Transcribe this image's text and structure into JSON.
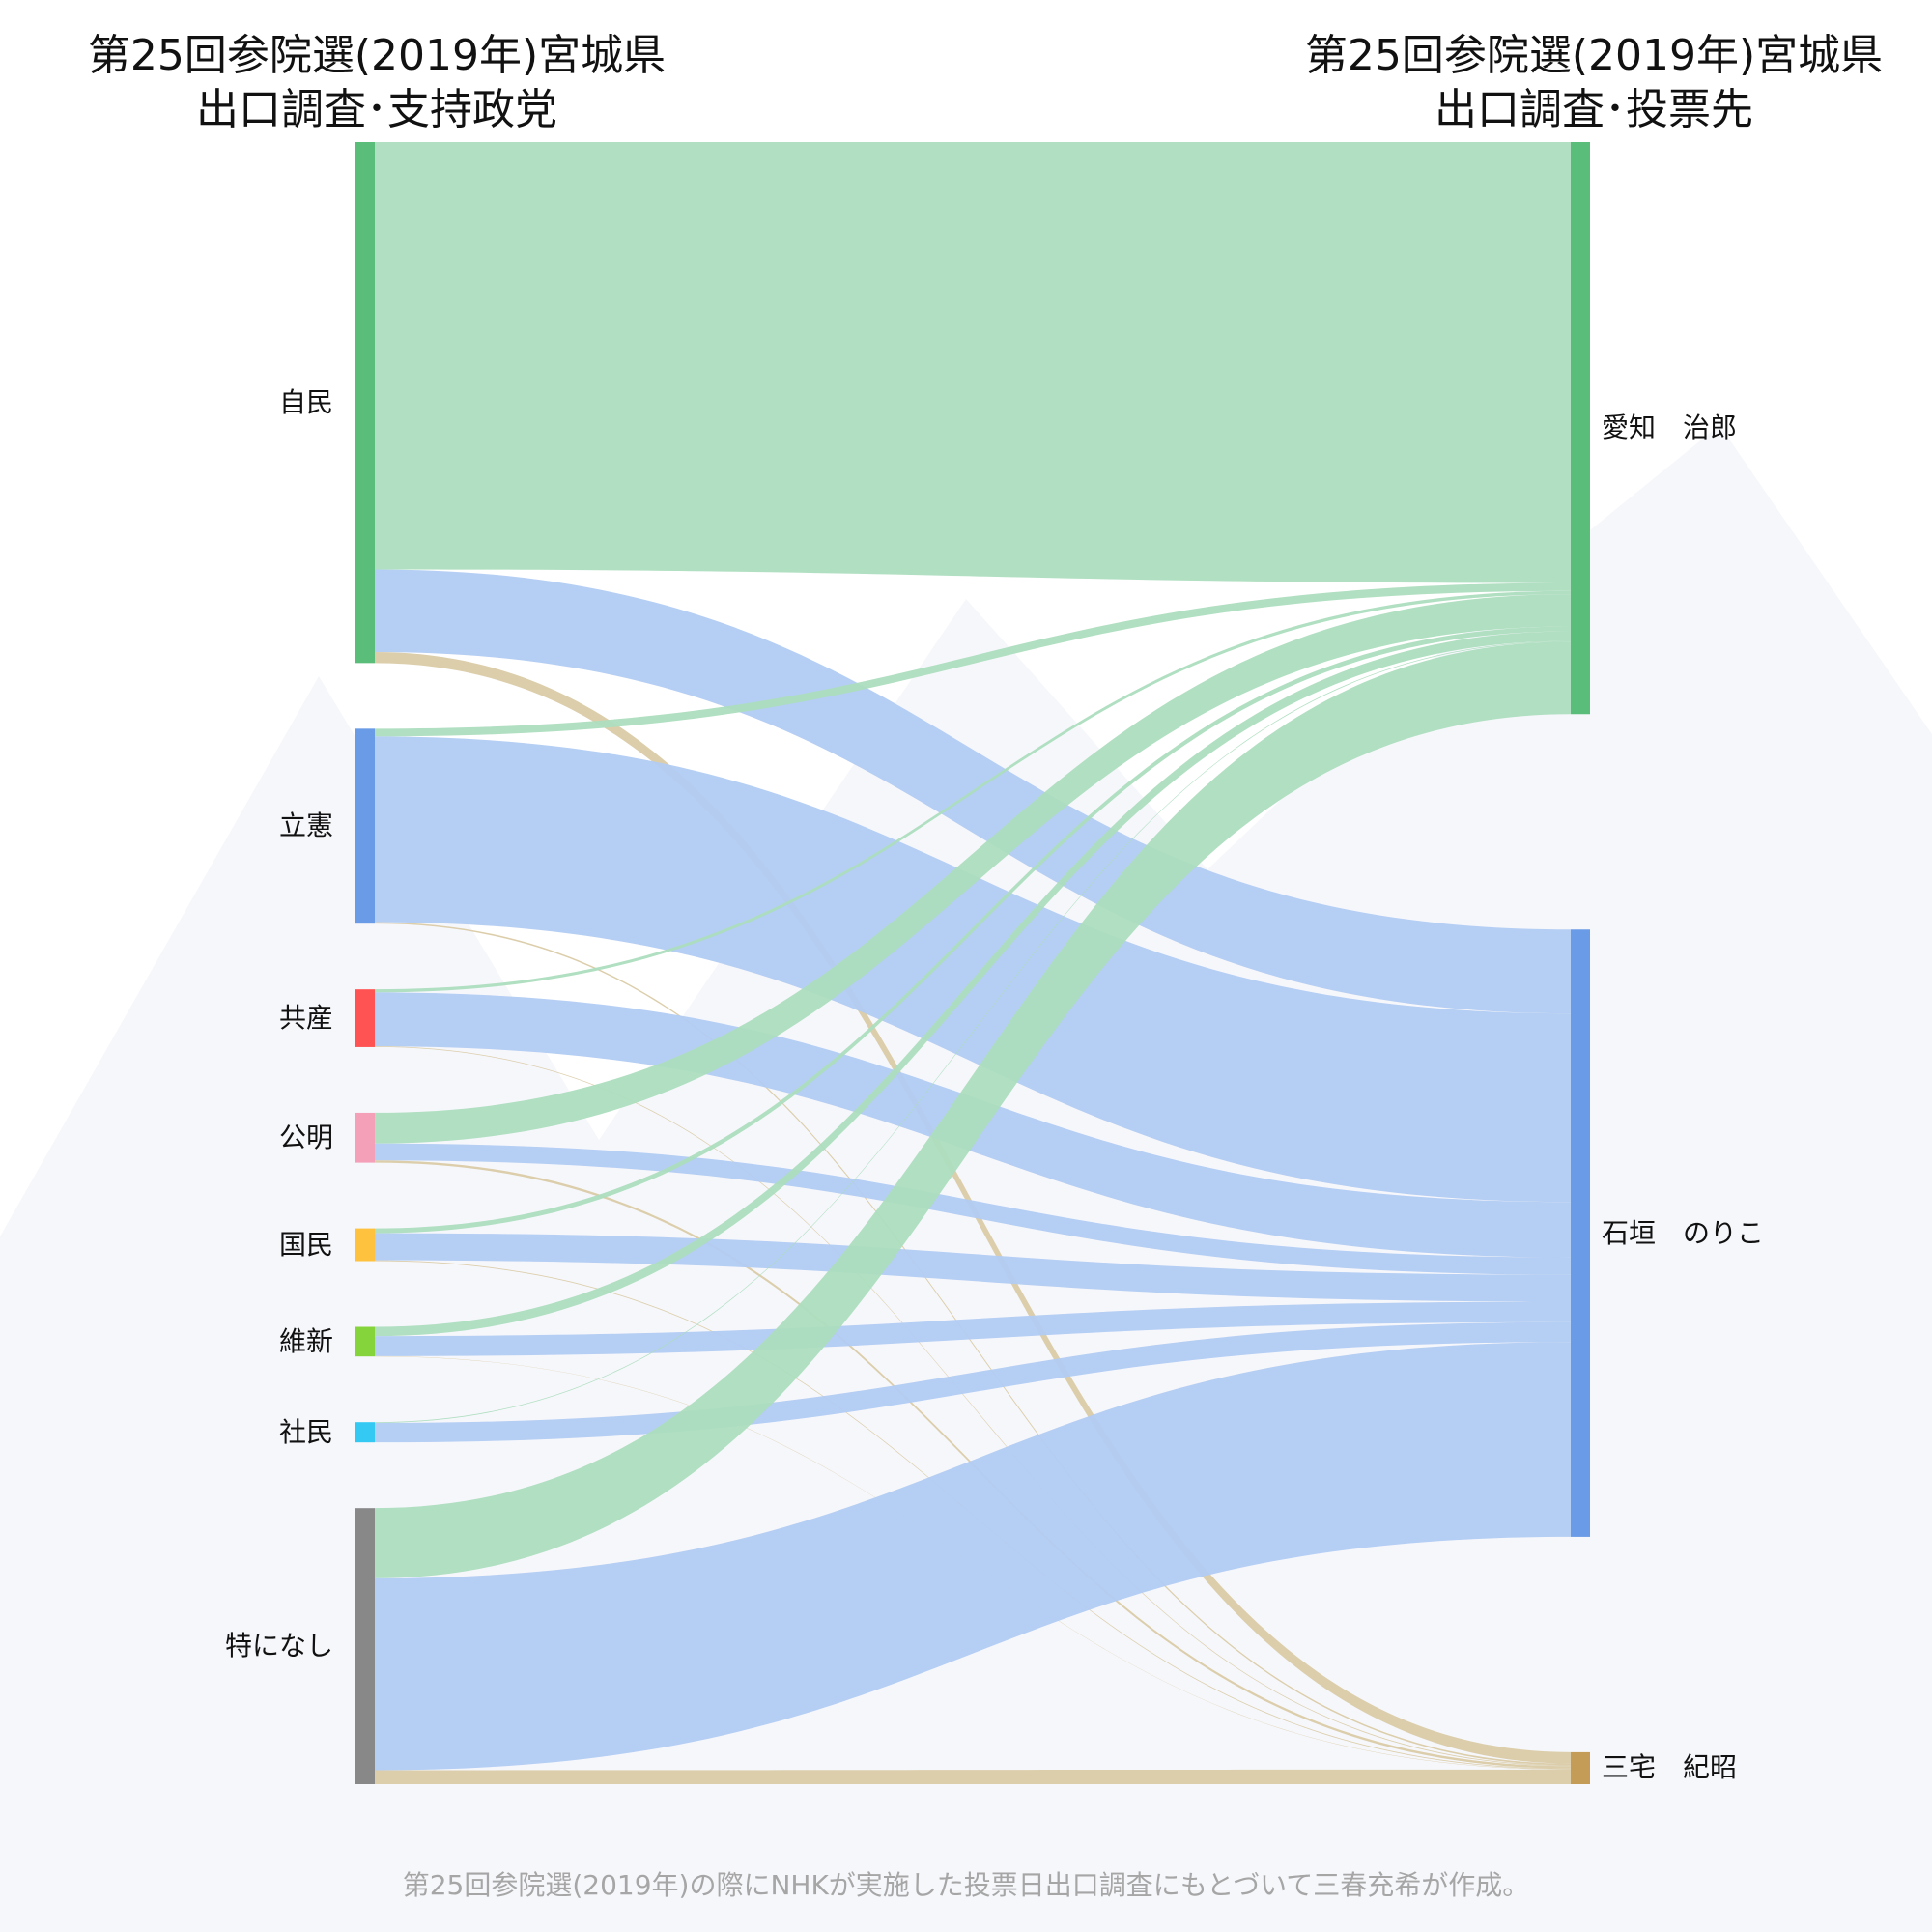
{
  "titles": {
    "left_line1": "第25回参院選(2019年)宮城県",
    "left_line2": "出口調査･支持政党",
    "right_line1": "第25回参院選(2019年)宮城県",
    "right_line2": "出口調査･投票先"
  },
  "footer": "第25回参院選(2019年)の際にNHKが実施した投票日出口調査にもとづいて三春充希が作成。",
  "colors": {
    "jimin": "#5bbd7a",
    "rikken": "#6a9be6",
    "kyosan": "#ff5252",
    "komei": "#f4a0b9",
    "kokumin": "#ffc23f",
    "ishin": "#86d43b",
    "shamin": "#34c9f2",
    "nashi": "#888888",
    "flow_aichi": "#acddbe",
    "flow_ishigaki": "#b1cbf2",
    "flow_miyake": "#dacba7",
    "node_miyake": "#c49b57",
    "background_decor": "#f6f7fb"
  },
  "chart_data": {
    "type": "sankey",
    "sources": [
      {
        "id": "jimin",
        "label": "自民",
        "value": 33.4
      },
      {
        "id": "rikken",
        "label": "立憲",
        "value": 12.5
      },
      {
        "id": "kyosan",
        "label": "共産",
        "value": 3.7
      },
      {
        "id": "komei",
        "label": "公明",
        "value": 3.2
      },
      {
        "id": "kokumin",
        "label": "国民",
        "value": 2.1
      },
      {
        "id": "ishin",
        "label": "維新",
        "value": 1.9
      },
      {
        "id": "shamin",
        "label": "社民",
        "value": 1.3
      },
      {
        "id": "nashi",
        "label": "特になし",
        "value": 17.7
      }
    ],
    "targets": [
      {
        "id": "aichi",
        "label": "愛知　治郎",
        "value": 35.8
      },
      {
        "id": "ishigaki",
        "label": "石垣　のりこ",
        "value": 38.0
      },
      {
        "id": "miyake",
        "label": "三宅　紀昭",
        "value": 2.0
      }
    ],
    "flows": [
      {
        "source": "jimin",
        "target": "aichi",
        "value": 27.4
      },
      {
        "source": "jimin",
        "target": "ishigaki",
        "value": 5.3
      },
      {
        "source": "jimin",
        "target": "miyake",
        "value": 0.7
      },
      {
        "source": "rikken",
        "target": "aichi",
        "value": 0.5
      },
      {
        "source": "rikken",
        "target": "ishigaki",
        "value": 11.9
      },
      {
        "source": "rikken",
        "target": "miyake",
        "value": 0.1
      },
      {
        "source": "kyosan",
        "target": "aichi",
        "value": 0.2
      },
      {
        "source": "kyosan",
        "target": "ishigaki",
        "value": 3.5
      },
      {
        "source": "kyosan",
        "target": "miyake",
        "value": 0.05
      },
      {
        "source": "komei",
        "target": "aichi",
        "value": 2.0
      },
      {
        "source": "komei",
        "target": "ishigaki",
        "value": 1.1
      },
      {
        "source": "komei",
        "target": "miyake",
        "value": 0.15
      },
      {
        "source": "kokumin",
        "target": "aichi",
        "value": 0.3
      },
      {
        "source": "kokumin",
        "target": "ishigaki",
        "value": 1.7
      },
      {
        "source": "kokumin",
        "target": "miyake",
        "value": 0.05
      },
      {
        "source": "ishin",
        "target": "aichi",
        "value": 0.6
      },
      {
        "source": "ishin",
        "target": "ishigaki",
        "value": 1.3
      },
      {
        "source": "ishin",
        "target": "miyake",
        "value": 0.02
      },
      {
        "source": "shamin",
        "target": "aichi",
        "value": 0.05
      },
      {
        "source": "shamin",
        "target": "ishigaki",
        "value": 1.25
      },
      {
        "source": "nashi",
        "target": "aichi",
        "value": 4.5
      },
      {
        "source": "nashi",
        "target": "ishigaki",
        "value": 12.3
      },
      {
        "source": "nashi",
        "target": "miyake",
        "value": 0.9
      }
    ]
  }
}
